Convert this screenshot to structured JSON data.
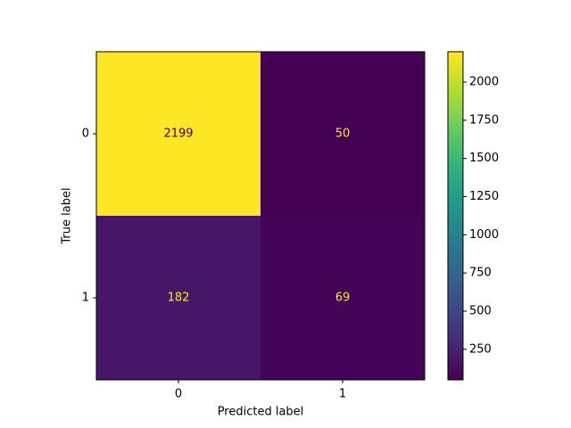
{
  "chart_data": {
    "type": "heatmap",
    "x_label": "Predicted label",
    "y_label": "True label",
    "x_categories": [
      "0",
      "1"
    ],
    "y_categories": [
      "0",
      "1"
    ],
    "values": [
      [
        2199,
        50
      ],
      [
        182,
        69
      ]
    ],
    "colormap": "viridis",
    "clim": [
      50,
      2199
    ],
    "cticks": [
      250,
      500,
      750,
      1000,
      1250,
      1500,
      1750,
      2000
    ]
  }
}
